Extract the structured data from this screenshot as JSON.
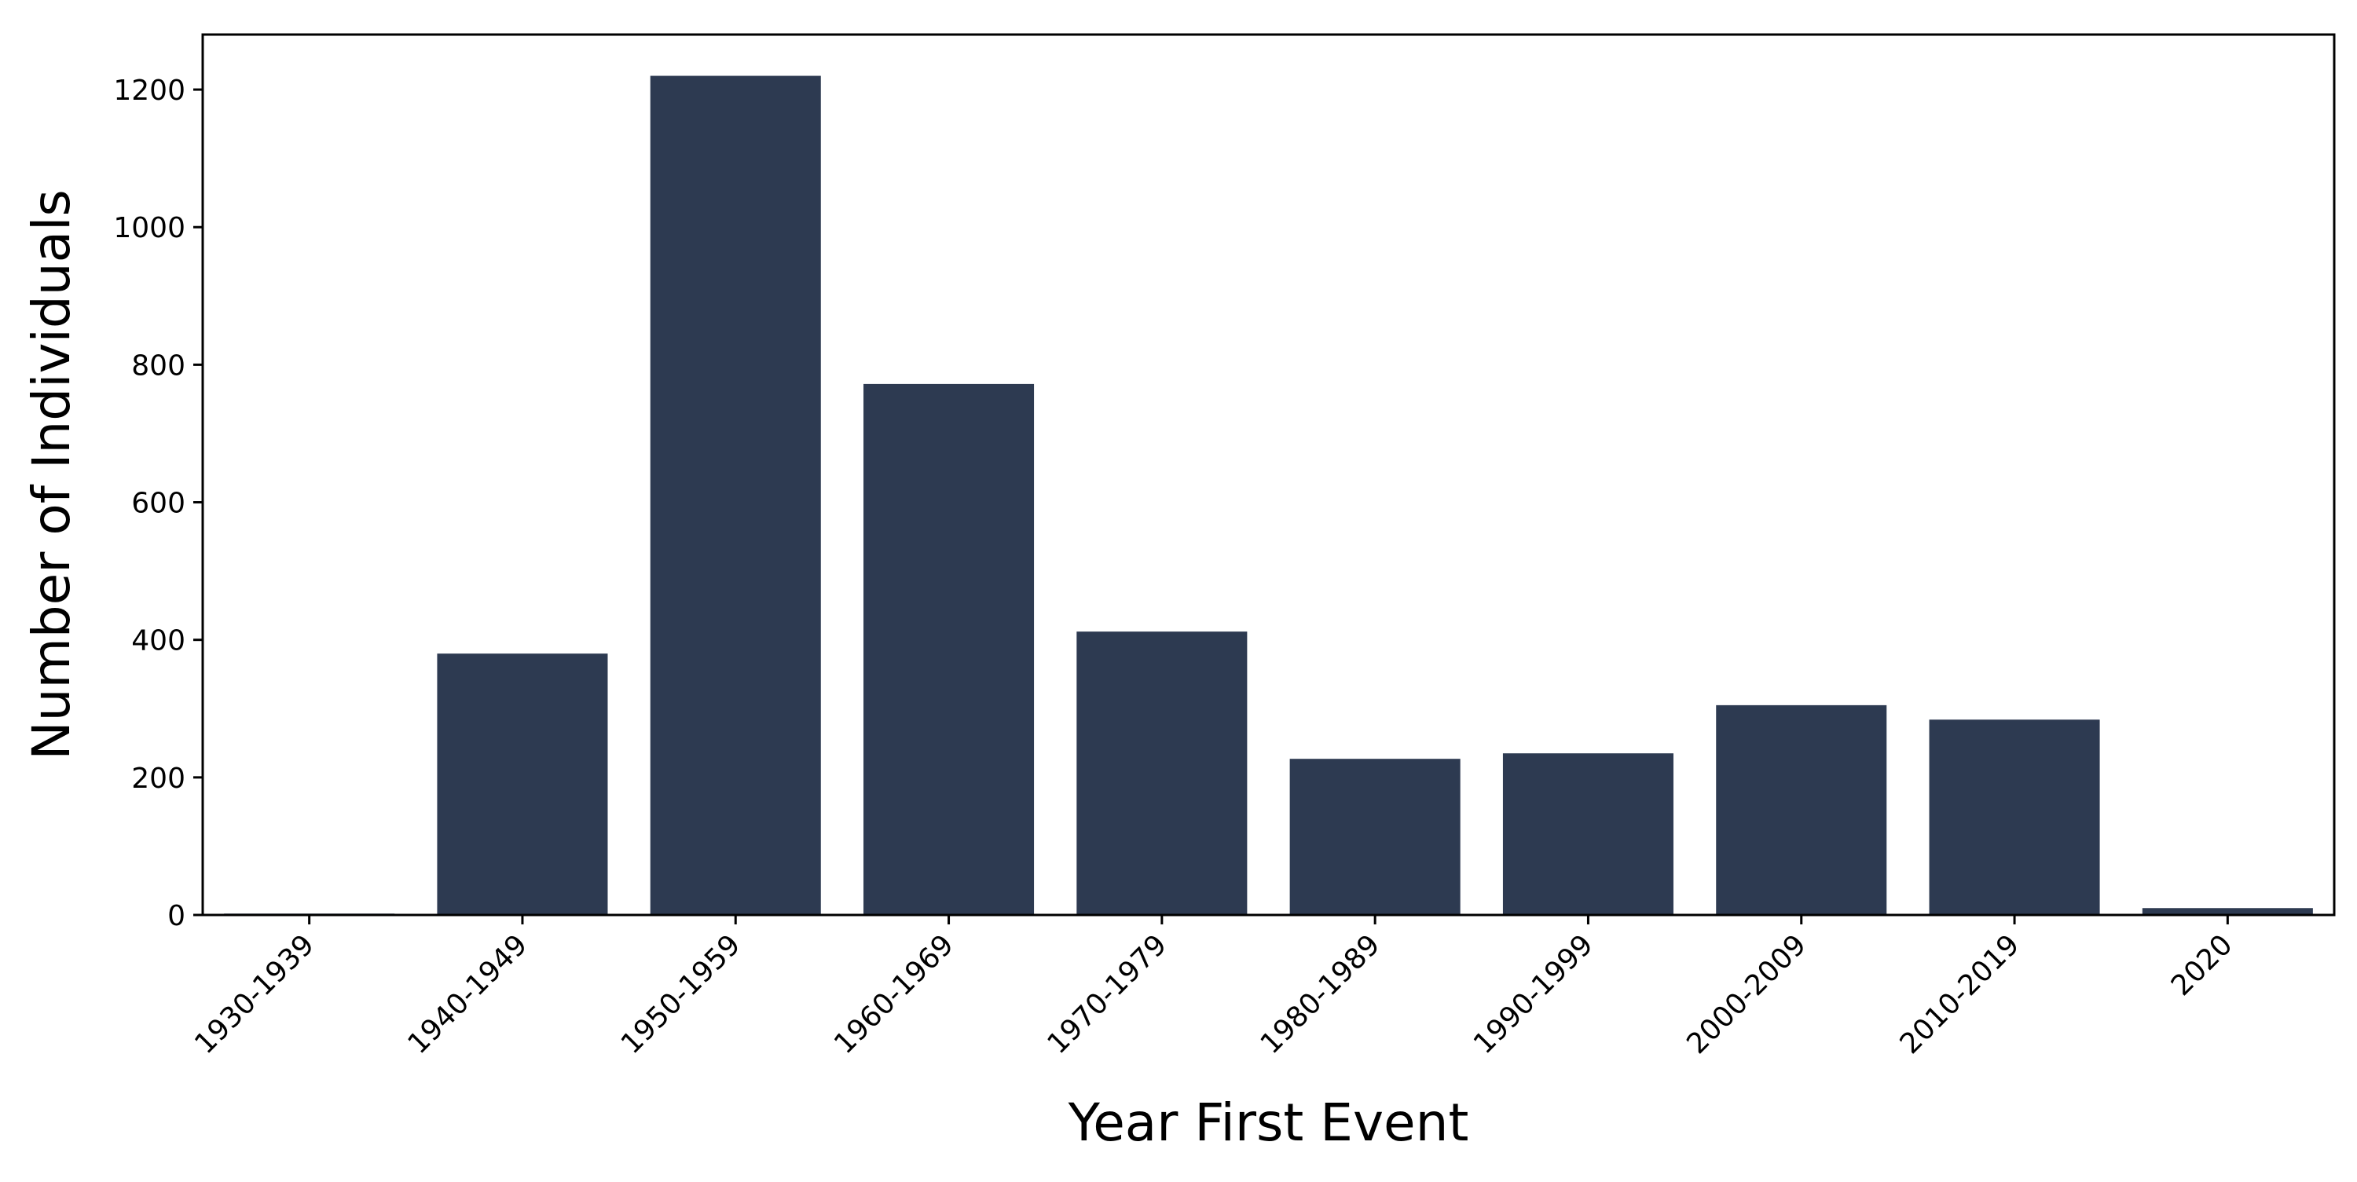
{
  "chart_data": {
    "type": "bar",
    "categories": [
      "1930-1939",
      "1940-1949",
      "1950-1959",
      "1960-1969",
      "1970-1979",
      "1980-1989",
      "1990-1999",
      "2000-2009",
      "2010-2019",
      "2020"
    ],
    "values": [
      2,
      380,
      1220,
      772,
      412,
      227,
      235,
      305,
      284,
      10
    ],
    "title": "",
    "xlabel": "Year First Event",
    "ylabel": "Number of Individuals",
    "ylim": [
      0,
      1280
    ],
    "yticks": [
      0,
      200,
      400,
      600,
      800,
      1000,
      1200
    ],
    "bar_color": "#2d3a51",
    "grid": false,
    "legend": "none"
  }
}
